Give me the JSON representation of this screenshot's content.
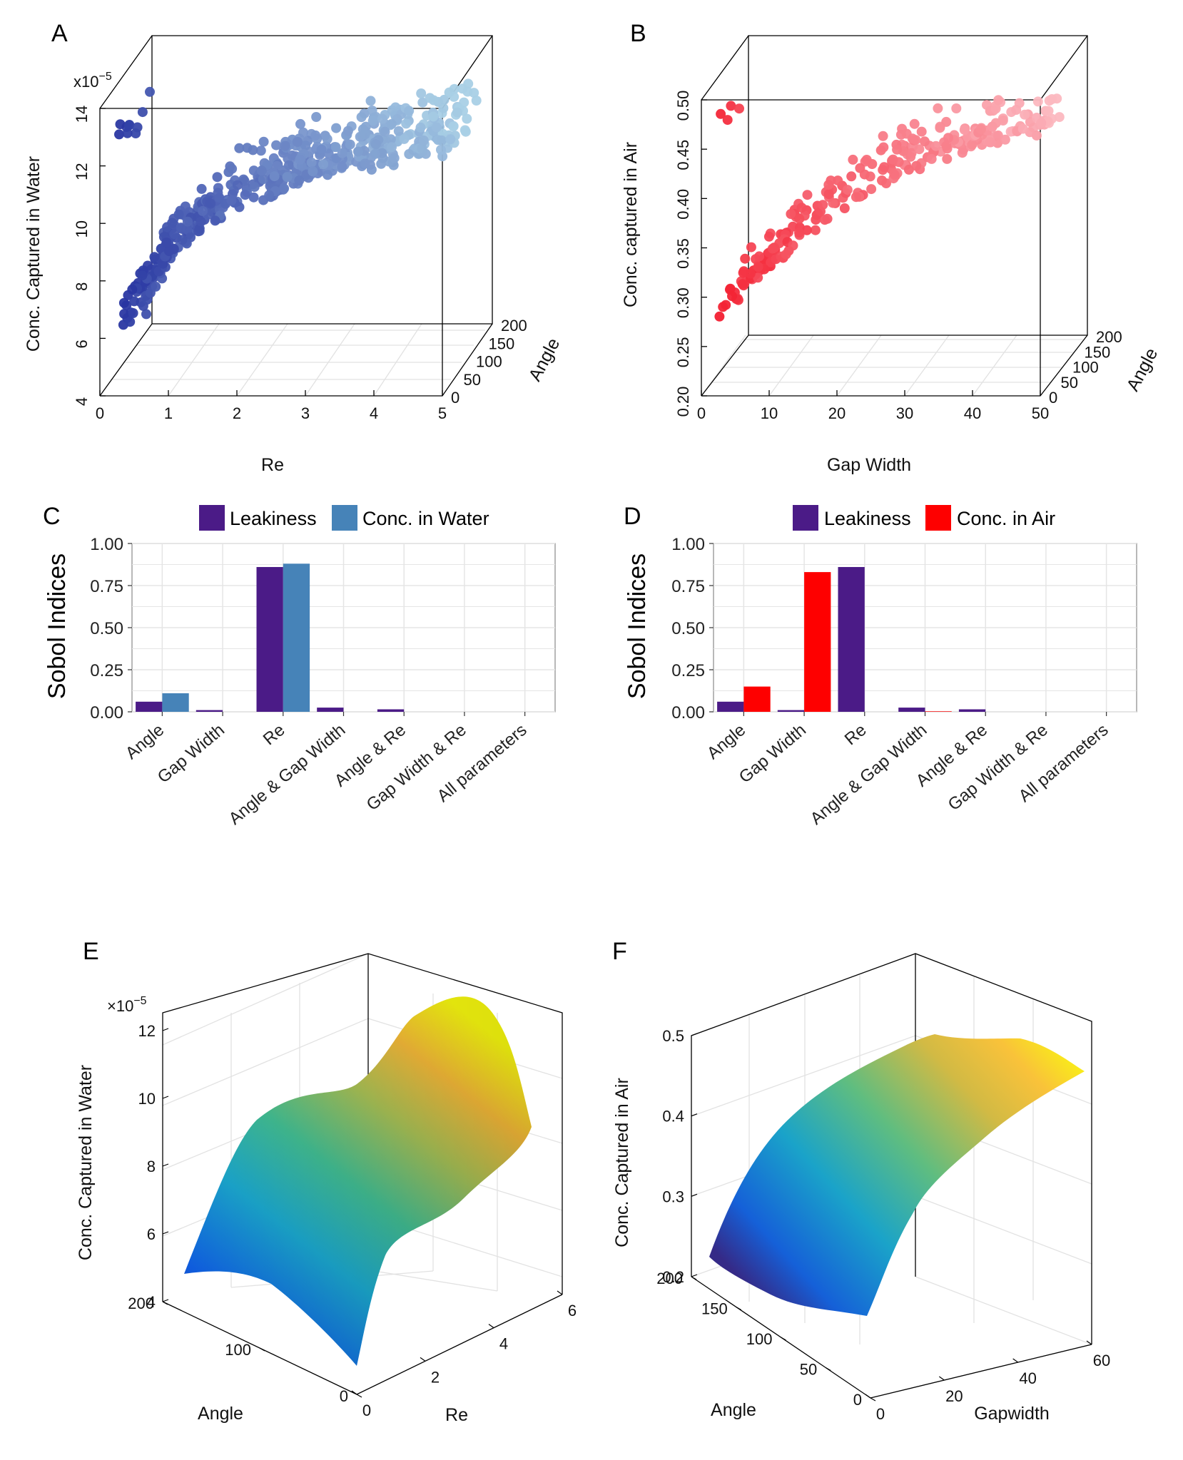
{
  "colors": {
    "leakiness": "#4b1b87",
    "conc_water": "#4683b8",
    "conc_air": "#fe0000",
    "water_points_light": "#a9d0e6",
    "water_points_dark": "#1f2a9c",
    "air_points_light": "#fcb8c0",
    "air_points_dark": "#f21628"
  },
  "chart_data": [
    {
      "panel": "A",
      "type": "scatter",
      "title": "",
      "xlabel": "Re",
      "ylabel": "Conc. Captured in Water",
      "zlabel": "Angle",
      "y_scale_label": "x10",
      "y_scale_exp": "−5",
      "x_ticks": [
        "0",
        "1",
        "2",
        "3",
        "4",
        "5"
      ],
      "y_ticks": [
        "4",
        "6",
        "8",
        "10",
        "12",
        "14"
      ],
      "z_ticks": [
        "0",
        "50",
        "100",
        "150",
        "200"
      ],
      "xlim": [
        0,
        5
      ],
      "ylim": [
        4,
        14
      ],
      "zlim": [
        0,
        200
      ],
      "trend": [
        [
          0.2,
          6.0
        ],
        [
          0.5,
          7.6
        ],
        [
          1.0,
          9.0
        ],
        [
          1.5,
          10.0
        ],
        [
          2.0,
          10.6
        ],
        [
          2.5,
          11.0
        ],
        [
          3.0,
          11.5
        ],
        [
          3.5,
          11.8
        ],
        [
          4.0,
          12.0
        ],
        [
          4.5,
          12.3
        ],
        [
          5.0,
          12.5
        ]
      ]
    },
    {
      "panel": "B",
      "type": "scatter",
      "title": "",
      "xlabel": "Gap Width",
      "ylabel": "Conc. captured in Air",
      "zlabel": "Angle",
      "x_ticks": [
        "0",
        "10",
        "20",
        "30",
        "40",
        "50"
      ],
      "y_ticks": [
        "0.20",
        "0.25",
        "0.30",
        "0.35",
        "0.40",
        "0.45",
        "0.50"
      ],
      "z_ticks": [
        "0",
        "50",
        "100",
        "150",
        "200"
      ],
      "xlim": [
        0,
        50
      ],
      "ylim": [
        0.2,
        0.5
      ],
      "zlim": [
        0,
        200
      ],
      "trend": [
        [
          2,
          0.28
        ],
        [
          5,
          0.3
        ],
        [
          8,
          0.32
        ],
        [
          12,
          0.35
        ],
        [
          16,
          0.37
        ],
        [
          20,
          0.39
        ],
        [
          25,
          0.41
        ],
        [
          30,
          0.43
        ],
        [
          35,
          0.44
        ],
        [
          40,
          0.45
        ],
        [
          45,
          0.46
        ],
        [
          50,
          0.465
        ]
      ]
    },
    {
      "panel": "C",
      "type": "bar",
      "ylabel": "Sobol Indices",
      "categories": [
        "Angle",
        "Gap Width",
        "Re",
        "Angle & Gap Width",
        "Angle & Re",
        "Gap Width & Re",
        "All parameters"
      ],
      "series": [
        {
          "name": "Leakiness",
          "values": [
            0.06,
            0.01,
            0.86,
            0.025,
            0.015,
            0.0,
            0.0
          ]
        },
        {
          "name": "Conc. in Water",
          "values": [
            0.11,
            0.0,
            0.88,
            0.0,
            0.0,
            0.0,
            0.0
          ]
        }
      ],
      "y_ticks": [
        "0.00",
        "0.25",
        "0.50",
        "0.75",
        "1.00"
      ],
      "ylim": [
        0,
        1
      ],
      "legend": "top"
    },
    {
      "panel": "D",
      "type": "bar",
      "ylabel": "Sobol Indices",
      "categories": [
        "Angle",
        "Gap Width",
        "Re",
        "Angle & Gap Width",
        "Angle & Re",
        "Gap Width & Re",
        "All parameters"
      ],
      "series": [
        {
          "name": "Leakiness",
          "values": [
            0.06,
            0.01,
            0.86,
            0.025,
            0.015,
            0.0,
            0.0
          ]
        },
        {
          "name": "Conc. in Air",
          "values": [
            0.15,
            0.83,
            0.0,
            0.003,
            0.0,
            0.0,
            0.0
          ]
        }
      ],
      "y_ticks": [
        "0.00",
        "0.25",
        "0.50",
        "0.75",
        "1.00"
      ],
      "ylim": [
        0,
        1
      ],
      "legend": "top"
    },
    {
      "panel": "E",
      "type": "area",
      "surface": true,
      "xlabel": "Re",
      "ylabel": "Angle",
      "zlabel": "Conc. Captured in Water",
      "z_scale_label": "×10",
      "z_scale_exp": "−5",
      "x_ticks": [
        "0",
        "2",
        "4",
        "6"
      ],
      "y_ticks": [
        "0",
        "100",
        "200"
      ],
      "z_ticks": [
        "4",
        "6",
        "8",
        "10",
        "12"
      ],
      "xlim": [
        0,
        6
      ],
      "ylim": [
        0,
        200
      ],
      "zlim": [
        4,
        12
      ]
    },
    {
      "panel": "F",
      "type": "area",
      "surface": true,
      "xlabel": "Gapwidth",
      "ylabel": "Angle",
      "zlabel": "Conc. Captured in Air",
      "x_ticks": [
        "0",
        "20",
        "40",
        "60"
      ],
      "y_ticks": [
        "0",
        "50",
        "100",
        "150",
        "200"
      ],
      "z_ticks": [
        "0.2",
        "0.3",
        "0.4",
        "0.5"
      ],
      "xlim": [
        0,
        60
      ],
      "ylim": [
        0,
        200
      ],
      "zlim": [
        0.2,
        0.5
      ]
    }
  ]
}
